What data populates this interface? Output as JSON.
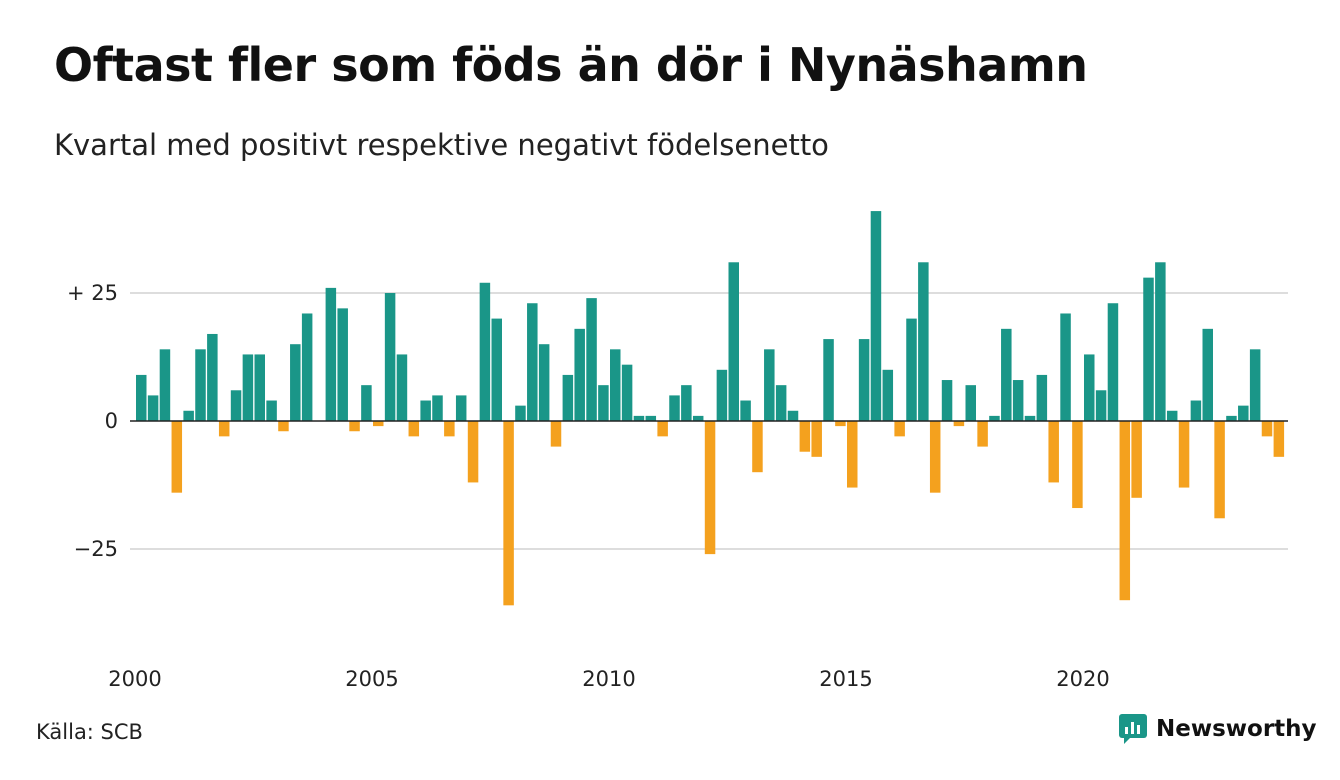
{
  "title": "Oftast fler som föds än dör i Nynäshamn",
  "subtitle": "Kvartal med positivt respektive negativt födelsenetto",
  "source": "Källa: SCB",
  "brand": "Newsworthy",
  "colors": {
    "positive": "#1a9688",
    "negative": "#f4a11e",
    "grid": "#dddddd",
    "brand": "#1a9688"
  },
  "chart_data": {
    "type": "bar",
    "start_year": 2000,
    "periods_per_year": 4,
    "values": [
      9,
      5,
      14,
      -14,
      2,
      14,
      17,
      -3,
      6,
      13,
      13,
      4,
      -2,
      15,
      21,
      0,
      26,
      22,
      -2,
      7,
      -1,
      25,
      13,
      -3,
      4,
      5,
      -3,
      5,
      -12,
      27,
      20,
      -36,
      3,
      23,
      15,
      -5,
      9,
      18,
      24,
      7,
      14,
      11,
      1,
      1,
      -3,
      5,
      7,
      1,
      -26,
      10,
      31,
      4,
      -10,
      14,
      7,
      2,
      -6,
      -7,
      16,
      -1,
      -13,
      16,
      41,
      10,
      -3,
      20,
      31,
      -14,
      8,
      -1,
      7,
      -5,
      1,
      18,
      8,
      1,
      9,
      -12,
      21,
      -17,
      13,
      6,
      23,
      -35,
      -15,
      28,
      31,
      2,
      -13,
      4,
      18,
      -19,
      1,
      3,
      14,
      -3,
      -7
    ],
    "y_ticks": [
      {
        "value": 25,
        "label": "+ 25"
      },
      {
        "value": 0,
        "label": "0"
      },
      {
        "value": -25,
        "label": "−25"
      }
    ],
    "x_ticks": [
      {
        "value": 2000,
        "label": "2000"
      },
      {
        "value": 2005,
        "label": "2005"
      },
      {
        "value": 2010,
        "label": "2010"
      },
      {
        "value": 2015,
        "label": "2015"
      },
      {
        "value": 2020,
        "label": "2020"
      }
    ],
    "ylim": [
      -42,
      42
    ],
    "grid": true,
    "legend": "none"
  }
}
